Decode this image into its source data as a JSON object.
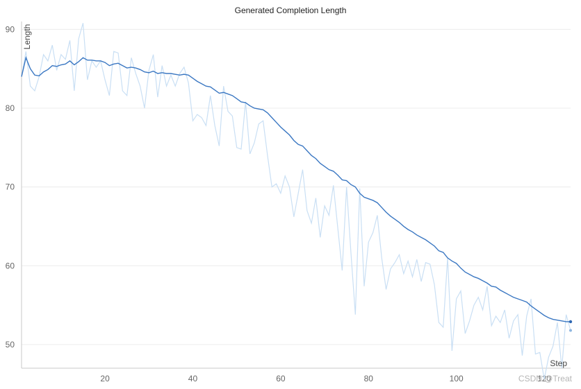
{
  "chart_data": {
    "type": "line",
    "title": "Generated Completion Length",
    "xlabel": "Step",
    "ylabel": "Length",
    "xlim": [
      1,
      126
    ],
    "ylim": [
      47,
      91
    ],
    "xticks": [
      20,
      40,
      60,
      80,
      100,
      120
    ],
    "yticks": [
      50,
      60,
      70,
      80,
      90
    ],
    "grid": true,
    "colors": {
      "raw": "#c9dff4",
      "smoothed": "#3a77c2"
    },
    "x": [
      1,
      2,
      3,
      4,
      5,
      6,
      7,
      8,
      9,
      10,
      11,
      12,
      13,
      14,
      15,
      16,
      17,
      18,
      19,
      20,
      21,
      22,
      23,
      24,
      25,
      26,
      27,
      28,
      29,
      30,
      31,
      32,
      33,
      34,
      35,
      36,
      37,
      38,
      39,
      40,
      41,
      42,
      43,
      44,
      45,
      46,
      47,
      48,
      49,
      50,
      51,
      52,
      53,
      54,
      55,
      56,
      57,
      58,
      59,
      60,
      61,
      62,
      63,
      64,
      65,
      66,
      67,
      68,
      69,
      70,
      71,
      72,
      73,
      74,
      75,
      76,
      77,
      78,
      79,
      80,
      81,
      82,
      83,
      84,
      85,
      86,
      87,
      88,
      89,
      90,
      91,
      92,
      93,
      94,
      95,
      96,
      97,
      98,
      99,
      100,
      101,
      102,
      103,
      104,
      105,
      106,
      107,
      108,
      109,
      110,
      111,
      112,
      113,
      114,
      115,
      116,
      117,
      118,
      119,
      120,
      121,
      122,
      123,
      124,
      125,
      126
    ],
    "series": [
      {
        "values": [
          84.0,
          87.2,
          82.8,
          82.2,
          84.0,
          86.8,
          86.0,
          88.0,
          84.8,
          86.8,
          86.2,
          88.6,
          82.2,
          88.8,
          90.8,
          83.6,
          86.0,
          85.2,
          86.0,
          83.6,
          81.6,
          87.2,
          87.0,
          82.2,
          81.6,
          86.4,
          84.4,
          82.8,
          80.0,
          84.8,
          86.8,
          81.4,
          85.4,
          82.8,
          84.2,
          82.8,
          84.4,
          85.2,
          83.2,
          78.4,
          79.2,
          78.8,
          77.8,
          81.6,
          77.8,
          75.2,
          82.8,
          79.6,
          79.0,
          75.0,
          74.8,
          80.8,
          74.2,
          75.6,
          78.0,
          78.4,
          74.0,
          70.0,
          70.4,
          69.2,
          71.4,
          70.0,
          66.2,
          69.2,
          72.2,
          67.0,
          65.4,
          68.6,
          63.6,
          67.6,
          66.4,
          70.2,
          64.8,
          59.4,
          70.0,
          61.6,
          53.8,
          69.8,
          57.4,
          63.0,
          64.2,
          66.4,
          61.0,
          57.0,
          59.6,
          60.4,
          61.4,
          59.0,
          60.6,
          58.6,
          60.8,
          58.0,
          60.4,
          60.2,
          57.6,
          52.8,
          52.2,
          61.0,
          49.2,
          55.8,
          56.8,
          51.4,
          53.0,
          55.0,
          56.0,
          54.4,
          57.4,
          52.4,
          53.6,
          52.8,
          54.4,
          50.8,
          53.0,
          53.8,
          48.6,
          53.6,
          55.8,
          48.8,
          49.0,
          45.6,
          48.4,
          49.8,
          52.8,
          47.0,
          53.8,
          51.8
        ]
      },
      {
        "values": [
          84.0,
          86.4,
          85.0,
          84.2,
          84.1,
          84.6,
          84.9,
          85.4,
          85.3,
          85.5,
          85.6,
          86.0,
          85.5,
          85.9,
          86.4,
          86.1,
          86.1,
          86.0,
          86.0,
          85.8,
          85.4,
          85.6,
          85.7,
          85.4,
          85.1,
          85.2,
          85.1,
          84.9,
          84.6,
          84.5,
          84.7,
          84.4,
          84.5,
          84.4,
          84.4,
          84.3,
          84.2,
          84.3,
          84.2,
          83.8,
          83.4,
          83.1,
          82.8,
          82.7,
          82.3,
          81.9,
          82.0,
          81.8,
          81.6,
          81.2,
          80.8,
          80.7,
          80.3,
          80.0,
          79.9,
          79.8,
          79.4,
          78.8,
          78.2,
          77.6,
          77.1,
          76.6,
          75.9,
          75.4,
          75.2,
          74.6,
          74.0,
          73.6,
          73.0,
          72.6,
          72.2,
          72.0,
          71.5,
          70.9,
          70.8,
          70.3,
          70.0,
          69.2,
          68.7,
          68.5,
          68.3,
          68.0,
          67.4,
          66.8,
          66.3,
          65.9,
          65.5,
          65.0,
          64.6,
          64.3,
          63.9,
          63.6,
          63.3,
          62.9,
          62.5,
          61.9,
          61.7,
          61.0,
          60.6,
          60.3,
          59.7,
          59.2,
          58.9,
          58.6,
          58.4,
          58.1,
          57.8,
          57.4,
          57.3,
          56.9,
          56.6,
          56.3,
          56.0,
          55.8,
          55.6,
          55.4,
          54.9,
          54.5,
          54.1,
          53.7,
          53.4,
          53.2,
          53.1,
          53.0,
          52.9,
          52.9
        ]
      }
    ]
  },
  "watermark": "CSDN @Treat"
}
